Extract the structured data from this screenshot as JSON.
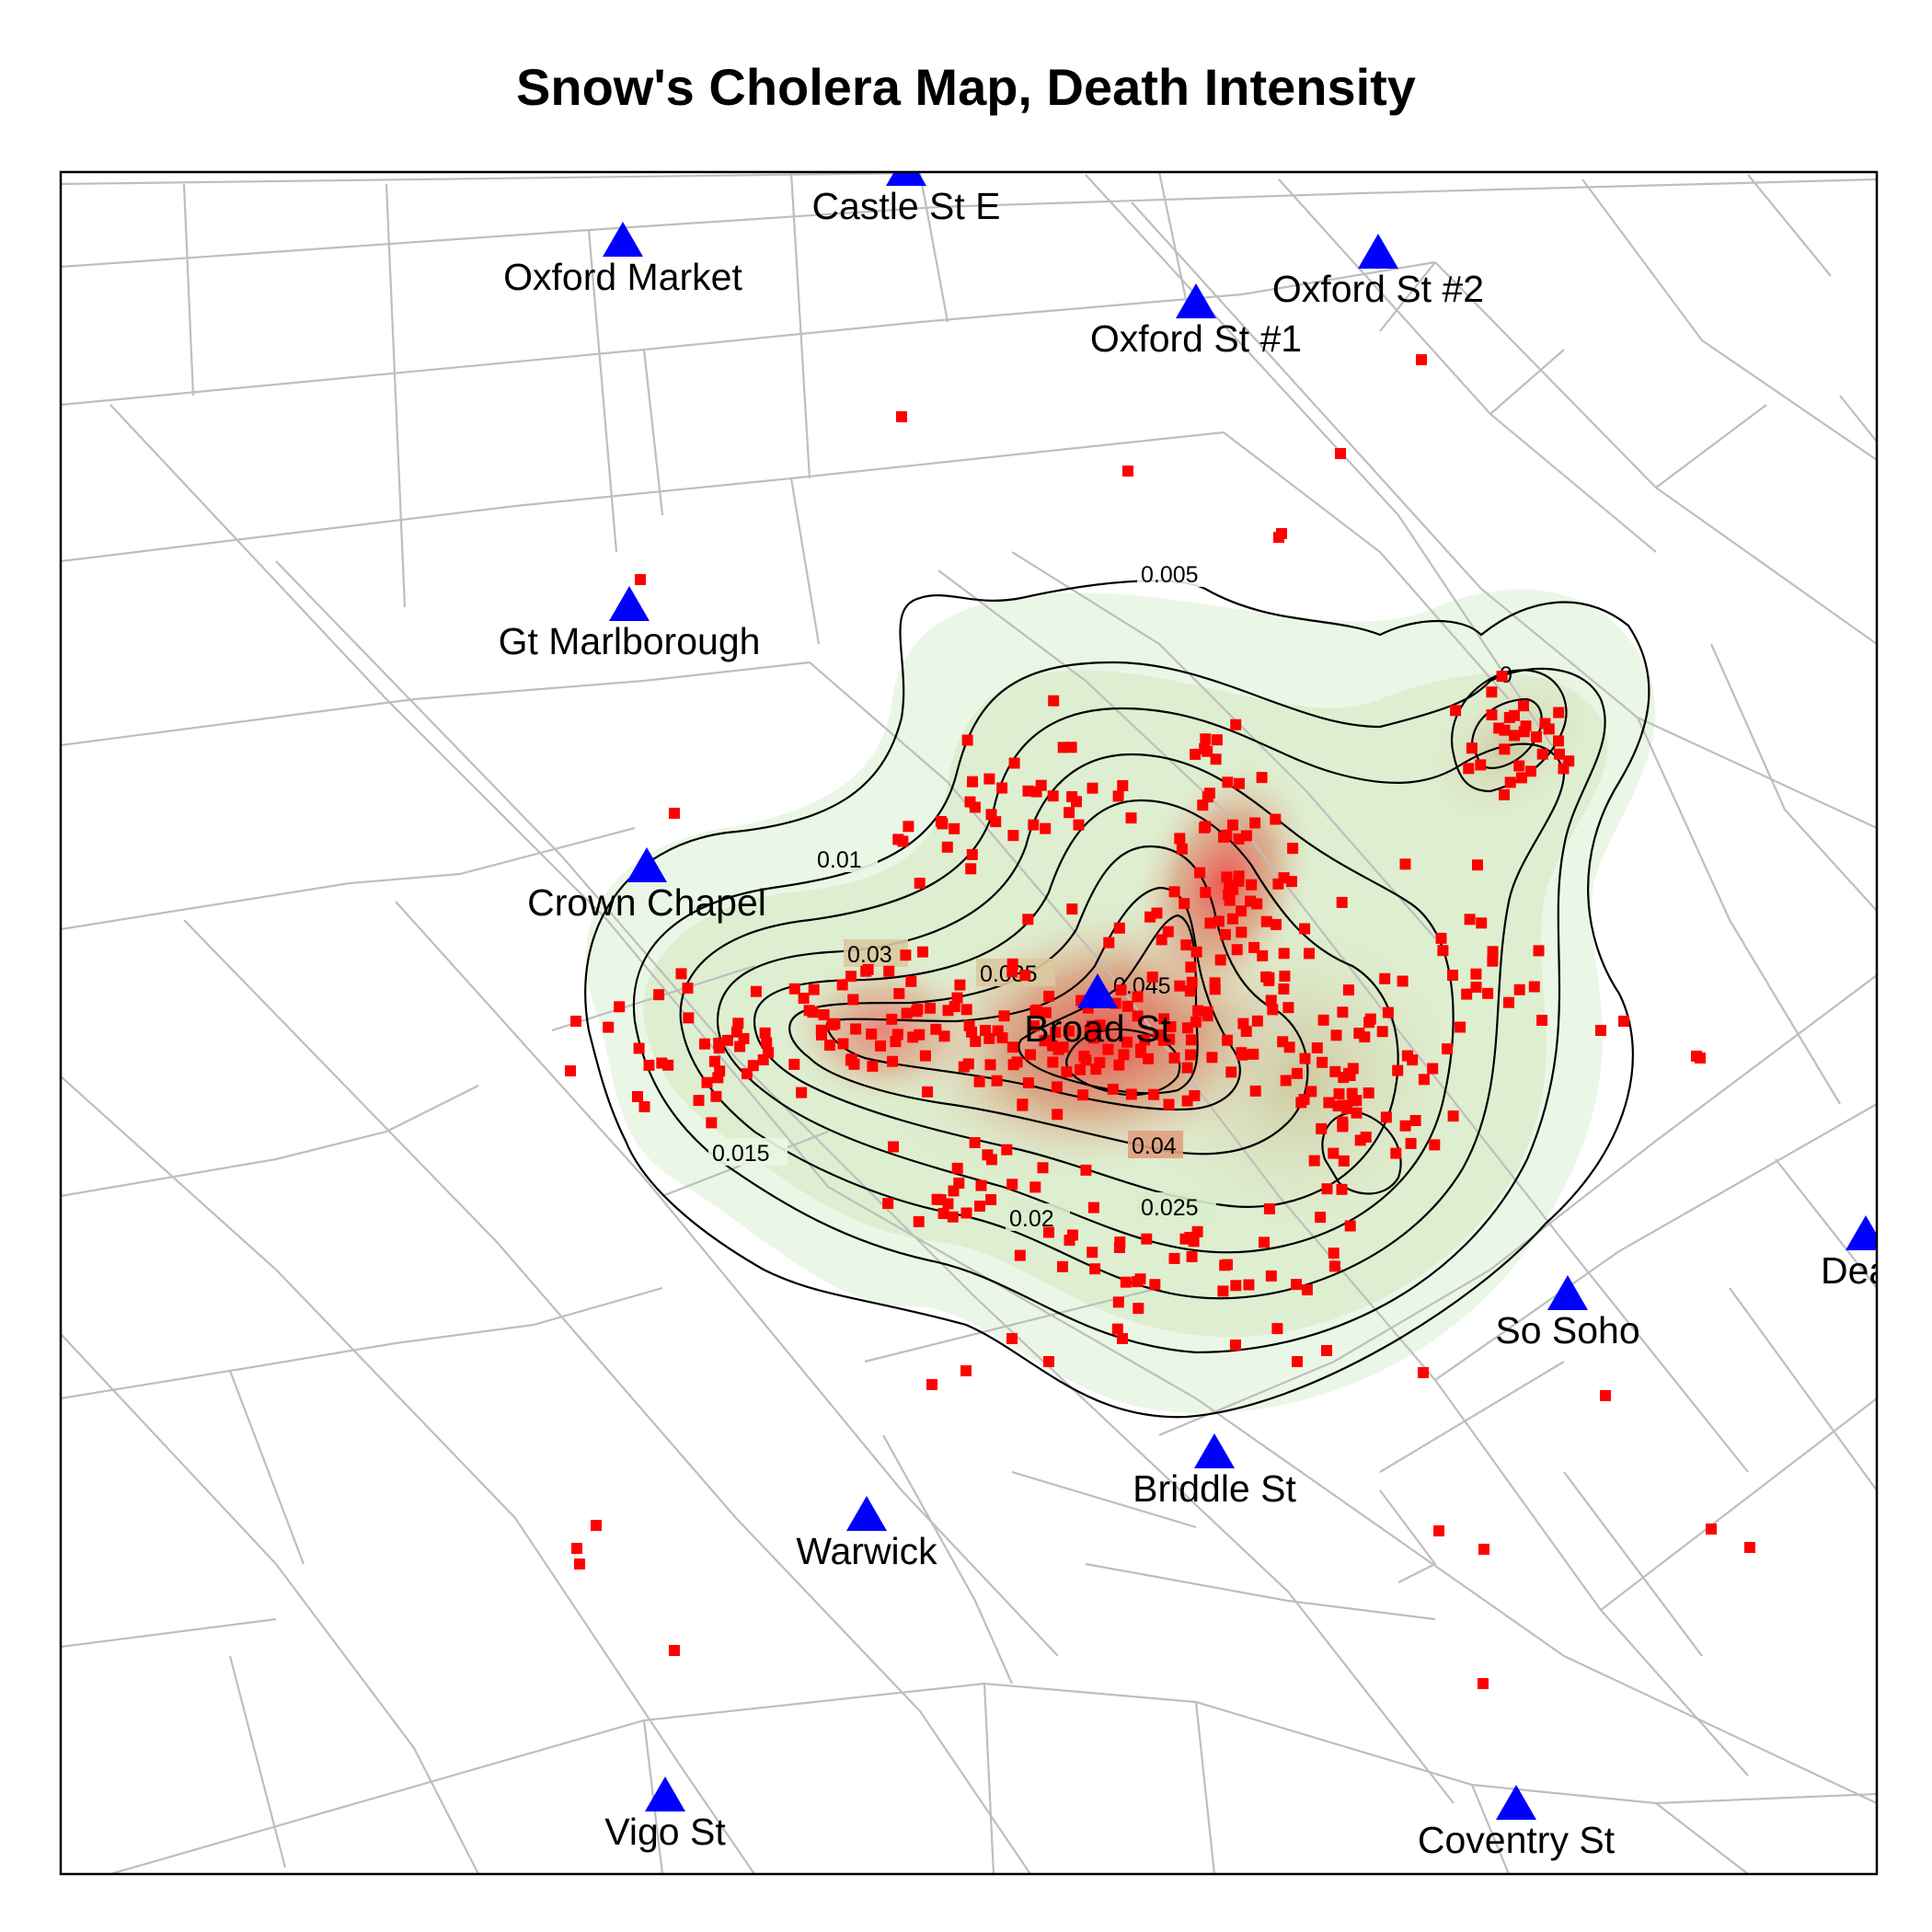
{
  "title": "Snow's Cholera Map, Death Intensity",
  "colors": {
    "pump": "#0000ff",
    "death": "#ff0000",
    "street": "#bebebe",
    "contour": "#000000",
    "density_low": "#e8f8e0",
    "density_mid": "#c9b98c",
    "density_high": "#f03c3c"
  },
  "pumps": [
    {
      "label": "Castle St E"
    },
    {
      "label": "Oxford Market"
    },
    {
      "label": "Oxford St #1"
    },
    {
      "label": "Oxford St #2"
    },
    {
      "label": "Gt Marlborough"
    },
    {
      "label": "Crown Chapel"
    },
    {
      "label": "Broad St"
    },
    {
      "label": "So Soho"
    },
    {
      "label": "Dean"
    },
    {
      "label": "Briddle St"
    },
    {
      "label": "Warwick"
    },
    {
      "label": "Vigo St"
    },
    {
      "label": "Coventry St"
    }
  ],
  "contour_labels": [
    "0.005",
    "0.01",
    "0.015",
    "0.02",
    "0.025",
    "0.03",
    "0.035",
    "0.04",
    "0.045",
    "0"
  ],
  "deaths_marker": "square",
  "pump_marker": "triangle"
}
